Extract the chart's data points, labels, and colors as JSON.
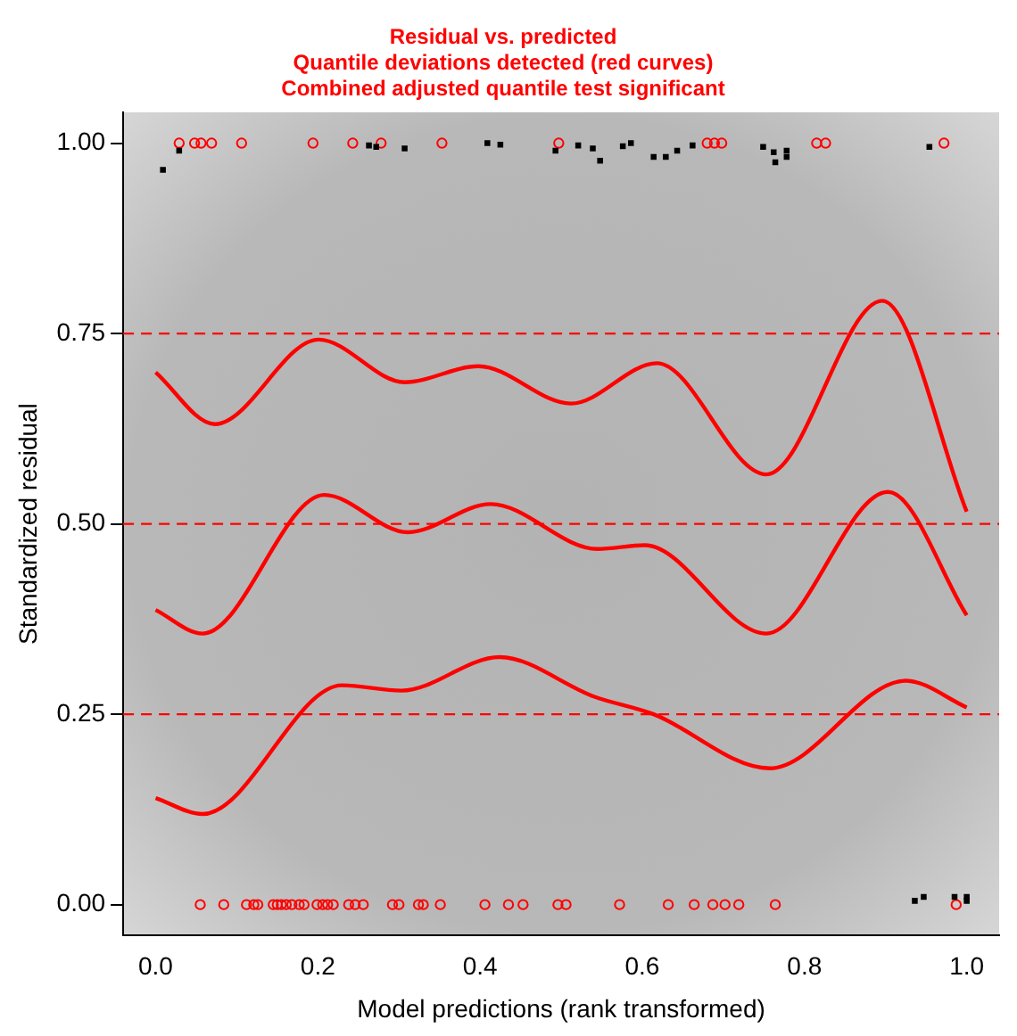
{
  "chart_data": {
    "type": "scatter",
    "title": "Residual vs. predicted",
    "subtitle": [
      "Quantile deviations detected (red curves)",
      "Combined adjusted quantile test significant"
    ],
    "xlabel": "Model predictions (rank transformed)",
    "ylabel": "Standardized residual",
    "xlim": [
      -0.04,
      1.04
    ],
    "ylim": [
      -0.04,
      1.04
    ],
    "xticks": [
      {
        "value": 0,
        "label": "0.0"
      },
      {
        "value": 0.2,
        "label": "0.2"
      },
      {
        "value": 0.4,
        "label": "0.4"
      },
      {
        "value": 0.6,
        "label": "0.6"
      },
      {
        "value": 0.8,
        "label": "0.8"
      },
      {
        "value": 1,
        "label": "1.0"
      }
    ],
    "yticks": [
      {
        "value": 0,
        "label": "0.00"
      },
      {
        "value": 0.25,
        "label": "0.25"
      },
      {
        "value": 0.5,
        "label": "0.50"
      },
      {
        "value": 0.75,
        "label": "0.75"
      },
      {
        "value": 1,
        "label": "1.00"
      }
    ],
    "grid": false,
    "legend": false,
    "ref_lines": [
      {
        "axis": "y",
        "value": 0.25,
        "color": "#ff0000",
        "line_style": "dashed"
      },
      {
        "axis": "y",
        "value": 0.5,
        "color": "#ff0000",
        "line_style": "dashed"
      },
      {
        "axis": "y",
        "value": 0.75,
        "color": "#ff0000",
        "line_style": "dashed"
      }
    ],
    "series": [
      {
        "type": "scatter",
        "marker": "square",
        "color": "#000000",
        "x": [
          0.009,
          0.029,
          0.263,
          0.272,
          0.307,
          0.409,
          0.425,
          0.493,
          0.521,
          0.539,
          0.548,
          0.576,
          0.586,
          0.614,
          0.629,
          0.643,
          0.662,
          0.749,
          0.762,
          0.778,
          0.778,
          0.764,
          0.954,
          0.936,
          0.947,
          0.985,
          1.0,
          1.0
        ],
        "values": [
          0.965,
          0.99,
          0.997,
          0.995,
          0.993,
          1.0,
          0.998,
          0.99,
          0.997,
          0.993,
          0.977,
          0.996,
          1.0,
          0.982,
          0.982,
          0.99,
          0.997,
          0.995,
          0.988,
          0.99,
          0.982,
          0.975,
          0.995,
          0.005,
          0.01,
          0.01,
          0.01,
          0.005
        ]
      },
      {
        "type": "scatter",
        "marker": "circle",
        "color": "#ff0000",
        "x": [
          0.029,
          0.048,
          0.056,
          0.069,
          0.106,
          0.194,
          0.243,
          0.278,
          0.353,
          0.497,
          0.68,
          0.689,
          0.698,
          0.815,
          0.826,
          0.972,
          0.055,
          0.084,
          0.112,
          0.121,
          0.126,
          0.145,
          0.15,
          0.155,
          0.161,
          0.168,
          0.177,
          0.183,
          0.199,
          0.206,
          0.212,
          0.219,
          0.238,
          0.246,
          0.256,
          0.292,
          0.3,
          0.324,
          0.33,
          0.351,
          0.406,
          0.435,
          0.453,
          0.496,
          0.506,
          0.572,
          0.632,
          0.664,
          0.687,
          0.702,
          0.719,
          0.764,
          0.987
        ],
        "values": [
          1,
          1,
          1,
          1,
          1,
          1,
          1,
          1,
          1,
          1,
          1,
          1,
          1,
          1,
          1,
          1,
          0,
          0,
          0,
          0,
          0,
          0,
          0,
          0,
          0,
          0,
          0,
          0,
          0,
          0,
          0,
          0,
          0,
          0,
          0,
          0,
          0,
          0,
          0,
          0,
          0,
          0,
          0,
          0,
          0,
          0,
          0,
          0,
          0,
          0,
          0,
          0,
          0
        ]
      },
      {
        "type": "line",
        "marker": "none",
        "color": "#ff0000",
        "x": [
          0.0,
          0.073,
          0.201,
          0.307,
          0.398,
          0.512,
          0.618,
          0.753,
          0.896,
          1.0
        ],
        "values": [
          0.699,
          0.631,
          0.742,
          0.686,
          0.707,
          0.658,
          0.711,
          0.565,
          0.793,
          0.516
        ]
      },
      {
        "type": "line",
        "marker": "none",
        "color": "#ff0000",
        "x": [
          0.0,
          0.058,
          0.208,
          0.311,
          0.413,
          0.545,
          0.603,
          0.753,
          0.903,
          1.0
        ],
        "values": [
          0.387,
          0.356,
          0.538,
          0.489,
          0.526,
          0.467,
          0.472,
          0.356,
          0.542,
          0.38
        ]
      },
      {
        "type": "line",
        "marker": "none",
        "color": "#ff0000",
        "x": [
          0.0,
          0.058,
          0.23,
          0.303,
          0.424,
          0.541,
          0.614,
          0.757,
          0.925,
          1.0
        ],
        "values": [
          0.14,
          0.119,
          0.288,
          0.281,
          0.325,
          0.273,
          0.25,
          0.179,
          0.294,
          0.259
        ]
      }
    ]
  }
}
